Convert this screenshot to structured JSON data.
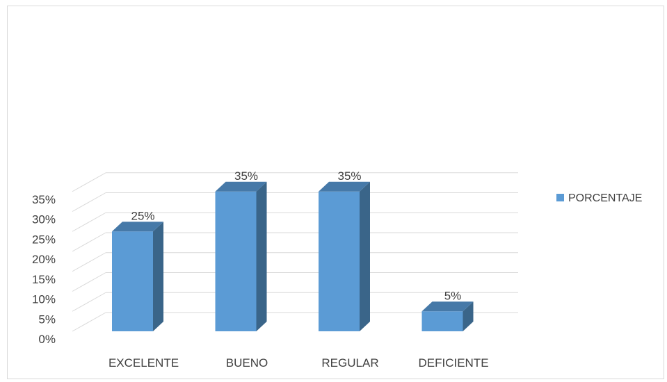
{
  "chart_data": {
    "type": "bar",
    "categories": [
      "EXCELENTE",
      "BUENO",
      "REGULAR",
      "DEFICIENTE"
    ],
    "series": [
      {
        "name": "PORCENTAJE",
        "values": [
          25,
          35,
          35,
          5
        ]
      }
    ],
    "data_labels": [
      "25%",
      "35%",
      "35%",
      "5%"
    ],
    "y_ticks": [
      "0%",
      "5%",
      "10%",
      "15%",
      "20%",
      "25%",
      "30%",
      "35%"
    ],
    "ylim": [
      0,
      35
    ],
    "grid": true,
    "legend": "right",
    "three_d": true,
    "colors": {
      "bar_front": "#5b9bd5",
      "bar_side": "#3a6589",
      "bar_top": "#4679a8",
      "grid": "#d9d9d9",
      "text": "#404040"
    }
  }
}
